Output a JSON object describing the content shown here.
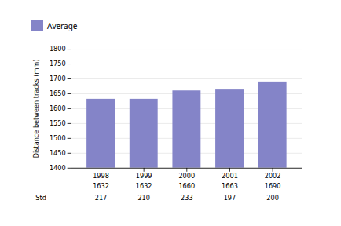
{
  "chart_data": {
    "type": "bar",
    "categories": [
      "1998",
      "1999",
      "2000",
      "2001",
      "2002"
    ],
    "series": [
      {
        "name": "Average",
        "color": "#8484c8",
        "values": [
          1632,
          1632,
          1660,
          1663,
          1690
        ]
      }
    ],
    "std": [
      217,
      210,
      233,
      197,
      200
    ],
    "std_label": "Std",
    "ylabel": "Distance between tracks (mm)",
    "ylim": [
      1400,
      1800
    ],
    "yticks": [
      1400,
      1450,
      1500,
      1550,
      1600,
      1650,
      1700,
      1750,
      1800
    ],
    "grid": true,
    "legend": "top"
  }
}
